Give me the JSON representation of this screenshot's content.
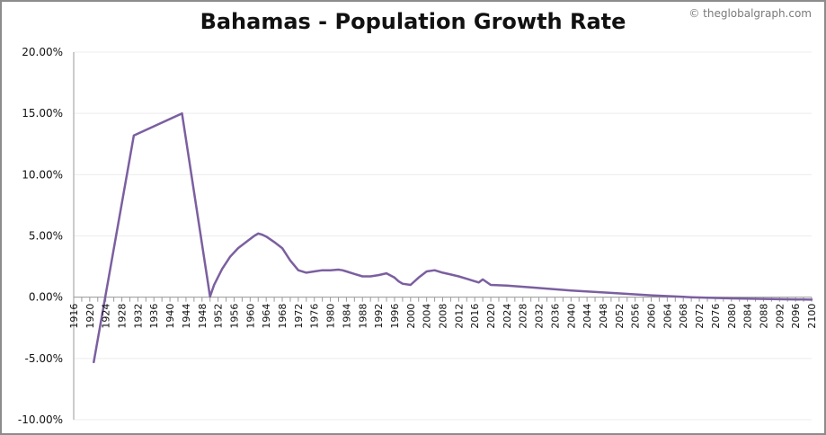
{
  "chart_data": {
    "type": "line",
    "title": "Bahamas - Population Growth Rate",
    "watermark": "© theglobalgraph.com",
    "xlabel": "",
    "ylabel": "",
    "xlim": [
      1916,
      2100
    ],
    "ylim": [
      -10,
      20
    ],
    "y_tick_values": [
      -10,
      -5,
      0,
      5,
      10,
      15,
      20
    ],
    "y_tick_labels": [
      "-10.00%",
      "-5.00%",
      "0.00%",
      "5.00%",
      "10.00%",
      "15.00%",
      "20.00%"
    ],
    "x_tick_values": [
      1916,
      1920,
      1924,
      1928,
      1932,
      1936,
      1940,
      1944,
      1948,
      1952,
      1956,
      1960,
      1964,
      1968,
      1972,
      1976,
      1980,
      1984,
      1988,
      1992,
      1996,
      2000,
      2004,
      2008,
      2012,
      2016,
      2020,
      2024,
      2028,
      2032,
      2036,
      2040,
      2044,
      2048,
      2052,
      2056,
      2060,
      2064,
      2068,
      2072,
      2076,
      2080,
      2084,
      2088,
      2092,
      2096,
      2100
    ],
    "x_tick_labels": [
      "1916",
      "1920",
      "1924",
      "1928",
      "1932",
      "1936",
      "1940",
      "1944",
      "1948",
      "1952",
      "1956",
      "1960",
      "1964",
      "1968",
      "1972",
      "1976",
      "1980",
      "1984",
      "1988",
      "1992",
      "1996",
      "2000",
      "2004",
      "2008",
      "2012",
      "2016",
      "2020",
      "2024",
      "2028",
      "2032",
      "2036",
      "2040",
      "2044",
      "2048",
      "2052",
      "2056",
      "2060",
      "2064",
      "2068",
      "2072",
      "2076",
      "2080",
      "2084",
      "2088",
      "2092",
      "2096",
      "2100"
    ],
    "grid": true,
    "line_color": "#7b5fa0",
    "series": [
      {
        "x": [
          1921,
          1931,
          1943,
          1950,
          1951,
          1953,
          1955,
          1957,
          1959,
          1961,
          1962,
          1963,
          1964,
          1966,
          1968,
          1970,
          1972,
          1974,
          1976,
          1978,
          1980,
          1982,
          1983,
          1984,
          1986,
          1988,
          1990,
          1992,
          1994,
          1996,
          1997,
          1998,
          2000,
          2002,
          2004,
          2006,
          2008,
          2010,
          2012,
          2014,
          2016,
          2017,
          2018,
          2020,
          2024,
          2030,
          2040,
          2050,
          2060,
          2070,
          2080,
          2090,
          2100
        ],
        "y": [
          -5.3,
          13.2,
          15.0,
          0.05,
          1.0,
          2.3,
          3.3,
          4.0,
          4.5,
          5.0,
          5.2,
          5.1,
          4.95,
          4.5,
          4.0,
          3.0,
          2.2,
          2.0,
          2.1,
          2.2,
          2.2,
          2.25,
          2.2,
          2.1,
          1.9,
          1.7,
          1.7,
          1.8,
          1.95,
          1.6,
          1.3,
          1.1,
          1.0,
          1.6,
          2.1,
          2.2,
          2.0,
          1.85,
          1.7,
          1.5,
          1.3,
          1.2,
          1.45,
          1.0,
          0.95,
          0.8,
          0.55,
          0.35,
          0.15,
          0.0,
          -0.1,
          -0.15,
          -0.2
        ]
      }
    ]
  }
}
